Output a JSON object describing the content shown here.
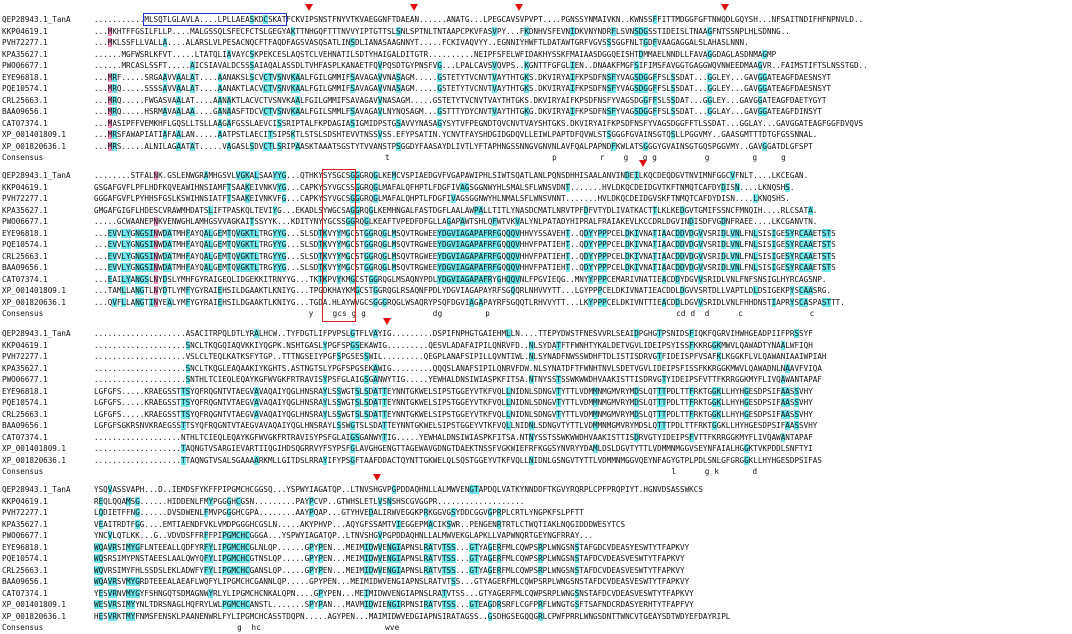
{
  "sequence_names": [
    "QEP28943.1_TanA",
    "KKP04619.1",
    "PVH72277.1",
    "KPA35627.1",
    "PWO06677.1",
    "EYE96818.1",
    "PQE10574.1",
    "CRL25663.1",
    "BAA09656.1",
    "CAT07374.1",
    "XP_001401809.1",
    "XP_001820636.1"
  ],
  "consensus_label": "Consensus",
  "blocks": [
    {
      "numbers": [
        "135",
        "145",
        "137",
        "136",
        "134",
        "141",
        "141",
        "141",
        "141",
        "142",
        "140",
        "149"
      ],
      "sequences": [
        "...........MLSQTLGLAVLA....LPLLAEASKDCSKATFCKVIPSNSTFNYVTKVAEGGNFTDAEAN......ANATG...LPEGCAVSVPVPT....PGNSSYNMAIVKN..KWNSSFFITTMDGGFGFTNWQDLGQYSH...NFSAITNDIFHFNPNVLD..",
        "...MKHTFFGSILFLLP....MALGSSQLSFECFCTSLGEGYAKTTNHGQFTTTNVVYIPTGTTSLSNLSPTNLTNTAAPCPKVFASVPY...FKDNHVSFEVNIDKVNYNDRFLSVNSDGSSTIDEISLTNAAGFNTSSNPLHLSDNNG..",
        "...MKLSSFLLVALLA....ALARSLVLPESACNQCFTFAQDFAGSVASQSATLINSDLIANASAAGNNYT.....FCKIVAQVYY..EGNNIYHWFTLDATAWTGRFVGVSSSGGFNLTGDFVAAGAGGALSLAHASLNNN.",
        "......MGFWSRLKFVT.....LTATQLIAVAYCSKPEKCESLAQSTCLVEHNATILSDTYHAIGALDITGTR..........NEIPFSFELWFIDAKHYSSKFMAIAASDGGQEISHTDMMAELNNDLLFAVAGGDAGLASDNMAGMP",
        "......MRCASLSSFT.....AICSIAVALDCSSSAIAQALASSDLTVHFASPLKANAETFQVPQSDTGYPNSFVG...LPALCAVSVQVPS..KGNTTFGFGLIEN..DNAAKFMGFSIFIMSFAVGGTGAGGWQVNWEEDMAAGVR..FAIMSTIFTSLNSSTGD..",
        "...MRF.....SRGAAVVAALAT....AANAKSLSCVCTVSNVKAALFGILGMMIFSAVAGAVVNASAGM.....GSTETYTVCNVTVAYTHTGKS.DKVIRYAIFKPSDFNSFYVAGSDGGFFSLSSDAT...GGLEY...GAVGGATEAGFDAESNSYT",
        "...MRQ.....SSSSAVVAALAT....AANAKTLACVCTVSNVKAALFGILGMMIFSAVAGAVVNASAGM.....GSTETYTVCNVTVAYTHTGKS.DKVIRYAIFKPSDFNSFYVAGSDGGFFSLSSDAT...GGLEY...GAVGGATEAGFDAESNSYT",
        "...MRQ.....FWGASVAALAT....AANAKTLACVCTVSNVKAALFGILGMMIFSAVAGAVVNASAGM.....GSTETYTVCNVTVAYTHTGKS.DKVIRYAIFKPSDFNSFYVAGSDGGFFSLSSDAT...GGLEY...GAVGGATEAGFDAETYGYT",
        "...MRQ.....HSRMAVAALAA....GANAASFTDCVCTVSNVKAALFGILSMMLFSAVAGAVLNYNQSAGM...GSTTTYDYCNVTVAYTHTGKG.DKVIRYAIFKPSDFNSFYVAGSDGGFFSLSSDAT...GGLAY...GAVGGATEAGFDINSYT",
        "...MASIPFFVEMKHFLGQSLLTSLLAAGAFGSSLAEVCISSRIPTALFKPDAGIASIGMIDPSTGSAVVYNASAGYSYTVFPEGNDTQVCNVTVAYSHTGKS.DKVIRYAIFKPSDFNSFYVAGSDGGFFTLSSDAT...GGLAY...GAVGGATEAGFGGFDVQVS",
        "...MRSFAWAPIATIAFAALAN.....AATPSTLAECITSIPSKTLSTSLSDSHTEVVTNSSVSS.EFYPSATIN.YCNVTFAYSHDGIDGDQVLLEIWLPAPTDFQVWLSTSGGGFGVAINSGTQSLLPGGVMY..GAASGMTTTDTGFGSSNNAL.",
        "...MRS.....ALNILAGAATAT.....VAGASLSDVCTLSRIPAASKTAAATSGSTYTVVANSTPSGGDYFAASAYDLIVTLYFTAPHNGSSNNGVGNVNLAVFQALPAPNDFKWLATSGGGYGVAINSGTGQSPGGVMY..GAVGGATDLGFSPT",
        "                                                             t                                  p         r    g   g g          g         g     g"
      ],
      "markers": [
        "col_46",
        "col_69",
        "col_92",
        "col_137"
      ]
    },
    {
      "numbers": [
        "280",
        "258",
        "288",
        "281",
        "283",
        "299",
        "299",
        "299",
        "299",
        "317",
        "310",
        "306"
      ],
      "sequences": [
        "........STFALNK.GSLENWGRAMHGSVLVGKALSAAYYG...QTHKYSYSGCSGGGRQGLKEMCVSPIAEDGVFVGAPAWIPHLSIWTSQATLANLPQNSDHHISAALANVINDEILKQCDEQDGVTNVIMNFGGCVFNLT....LKCEGAN.",
        "GSGAFGVFLPFLHDFKQVEAWIHNSIAMFTSAAKEIVNKVYG...CAPKYSYVGCSSGGRQGLMAFALQFHPTLFDGFIVAGSGGNWYHLSMALSFLWNSVDNT.......HVLDKQCDEIDGVTKFTNMQTCAFDYDISN....LKNQSHS.",
        "GGGAFGVFLPYHHSFGSLKSWIHNSIATFTSAAKEIVNKVFG...CAPKYSYVGCSGGGRQGLMAFALQHPTLFDGFIVAGSGGNWYHLNMALSFLWNSVNNT.......HVLDKQCDEIDGVSKFTNMQTCAFDYDISN....LKNQSHS.",
        "GMGAFGIGFLHDESCVRAWMHDATSLIFTPASKQLTEVIYG...EKADLSYWGCSAGGRQGLKEMHNGALFASTDGFLAALAWPALLTITLYNASDCMATLNRVTPFDFVTYDLIVATKACTTLKLKEDGVTGMIFSSNCFMNQIH....RLCSATA.",
        ".....GCWAANEPNKVENWGHLAMHGSVVAGKAITSSYYK...KDITYNYYGCSSGGRQGLKEAFTVPEDFDFGLLAGAPAWTSHLQFWTVKVALYNLPATADYHIPRALFRAIAKEVLKCCDRLDGVINDISDFVGDNFRAEE....LKCGANVTN.",
        "...EVVLYGNGSINWDATMHFAYQALGEMTQVGKTLTRGYYG...SLSDTKVYYMGCSTGGRQGLMSQVTRGWEEYDGVIAGAPAFRFGQQQVHHVYSSAVEHT..QDYYPPPCELDKIVNATIAACDDVDGVVSRIDLVNLFNLSISIGESYRCAAETSTS",
        "...EVVLYGNGSINWDATMHFAYQALGEMTQVGKTLTRGYYG...SLSDTKVYYMGCSTGGRQGLMSQVTRGWEEYDGVIAGAPAFRFGQQQVHHVFPATIEHT..QDYYPPPCELDKIVNATIAACDDVDGVVSRIDLVNLFNLSISIGESYRCAAETSTS",
        "...EVVLYGNGSINWDATMHFAYQALGEMTQVGKTLTRGYYG...SLSDTKVYYMGCSTGGRQGLMSQVTRGWEEYDGVIAGAPAFRFGQQQVHHVFPATIEHT..QDYYPPPCELDKIVNATIAACDDVDGVVSRIDLVNLFNLSISIGESYRCAAETSTS",
        "...EVVLYGNGSINWDATMHFAYQALGEMTQVGKTLTRGYYG...SLSDTKVYYMGCSTGGRQGLMSQVTRGWEEYDGVIAGAPAFRFGQQQVHHVFPATIEHT..QDYYPPPCELDKIVNATIAACDDVDGVVSRIDLVNLFNLSISIGESYRCAAETSTS",
        "...EAILYANGSLNYDSLYMHFGYRAIGEQLIDGEKKITRNYYG...TKTKPVYKMGCSTGGRQGLMSAQNYPDLYDGVIAGAPAFRYGHQQVNLFPGVIEQG..MNYYPPPCEMARIVNATIEACDDYDGVVSRIDLVNLFNFSNSIGLHYRCAGSNP.",
        "...TAMLLANGTLNYDTLYMFYGYRAIEHSILDGAAKTLKNIYG...TPGDKHAYKMGCSTGGRQGLRSAQNFPDLYDGVIAGAPAYRFSGQQRLNHVVYTT...LGYPPPCELDKIVNATIEACDDLDGVVSRTDLLVAPTLDLDSIGEKPYSCAASRG.",
        "...QVFLLANGTINYEALYMFYGYRAIEHSILDGAAKTLKNIYG...TGDA.HLAYWVGCSGGGRQGLWSAQRYPSQFDGVIAGAPAYRFSGQQTLRHVVYTT...LKYPPPCELDKIVNTTIEACDDLDGVVSRIDLVNLFHHDNSTIAPRYSCASPASTTT.",
        "                                             y    gcs g g              dg         p                                       cd d  d      c              c"
      ],
      "markers": [
        "col_119"
      ]
    },
    {
      "numbers": [
        "404",
        "371",
        "413",
        "407",
        "405",
        "456",
        "458",
        "458",
        "458",
        "463",
        "457",
        "449"
      ],
      "sequences": [
        "....................ASACITRPQLDTLYRALHCW..TYFDGTLIFPVPSLGTFLVAYIG.........DSPIFNPHGTGAIEHMLLN....TTEPYDWSTFNESVVRLSEAIDPGHGTPSNIDSFIQKFQGRVIHWHGEADPIIFPRSSYF",
        "....................SNCLTKQGQIAQVKKIYQGPK.NSHTGASLYPGFSPGSEKAWIG.........QESVLADAFAIPILQNRVFD..NLSYDATFTFWNHTYKALDETVGVLIDEIPSYISSFKKRGGKMWVLQAWADTYNAALWFIQH",
        "....................VSLCLTEQLKATKSFYTGP..TTTNGSEIYPGFSPGSESSWIL.........QEGPLANAFSIPILLQVNTIWL.NLSYNADFNWSSWDHFTDLISTISDRVGTFIDEISPFVSAFKLKGGKFLVLQAWANIAAIWPIAH",
        "....................SNCLTKQGLEAQAAKIYKGHTS.ASTNGTSLYPGFSPGSEKAWIG.........QQQSLANAFSIPILQNRVFDW.NLSYNATDFTFWNHTNVLSDETVGVLIDEIPSFISSFKKRGGKMWVLQAWADNLNAAVFVIQA",
        "....................SNTHLTCIEQLEQAYKGFWVGKFRTRAVISYPSFGLAIGSGANWYTIG.....YEWHALDNSIWIASPKFITSA.NTNYSSTSSWKWWDHVAAKISTTISDRVGTYIDEIPSFVTTFKRRGGKMYFLIVQAWANTAPAF",
        "LGFGFS.....KRAEGSSTTSYQFRQGNTVTAEGVAVAQAIYQGLHNSRAYLSSWGTSLSDATTEYNNTGKWELSIPSTGGEYVTKFVQLLNIDNLSDNGVTYTTLVDMMNMGMVRYMDSLQTTTPDLTTFRKTGGKLLHYHGESDPSIFAASSVHY",
        "LGFGFS.....KRAEGSSTTSYQFRQGNTVTAEGVAVAQAIYQGLHNSRAYLSSWGTSLSDATTEYNNTGKWELSIPSTGGEYVTKFVQLLNIDNLSDNGVTYTTLVDMMNMGMVRYMDSLQTTTPDLTTFRKTGGKLLHYHGESDPSIFAASSVHY",
        "LGFGFS.....KRAEGSSTTSYQFRQGNTVTAEGVAVAQAIYQGLHNSRAYLSSWGTSLSDATTEYNNTGKWELSIPSTGGEYVTKFVQLLNIDNLSDNGVTYTTLVDMMNMGMVRYMDSLQTTTPDLTTFRKTGGKLLHYHGESDPSIFAASSVHY",
        "LGFGFSGKRSNVKRAEGSSTTSYQFRQGNTVTAEGVAVAQAIYQGLHNSRAYLSSWGTSLSDATTEYNNTGKWELSIPSTGGEYVTKFVQLLNIDNLSDNGVTYTTLVDMMNMGMVRYMDSLQTTTPDLTTFRKTGGKLLHYHGESDPSIFAASSVHY",
        "...................NTHLTCIEQLEQAYKGFWVGKFRTRAVISYPSFGLAIGSGANWYTIG.....YEWHALDNSIWIASPKFITSA.NTNYSSTSSWKWWDHVAAKISTTISDRVGTYIDEIPSFVTTFKRRGGKMYFLIVQAWANTAPAF",
        "...................TAQNGTVSARGIEVARTIIQGIHDSQGRRVYFSYPSFGLAVGHGENGTTAGEWAVGDNGTDAEKTNSSFVGKWIEFRFKGGSYNVRYYDAMLDSLDGVTYTTLVDMMNMGGVSEYNFAIALHGGKTVKPDDLSNFTYI",
        "...................TTAQNGTVSALSGAAAARKMLLGITDSLRRAYIFYPSGFTAAFDDACTQYNTTGKWELQLSQSTGGEYVTKFVQLLNIDNLGSNGVTYTTLVDMMNMGGVQEYNFAGYGTPLPDLSNLGFGRGGKLLHYHGESDPSIFAS",
        "                                                                                                                         l      g k       d"
      ],
      "markers": [
        "col_63"
      ]
    },
    {
      "numbers": [
        "528",
        "466",
        "514",
        "513",
        "540",
        "578",
        "585",
        "580",
        "584",
        "587",
        "573",
        "572"
      ],
      "sequences": [
        "YSQVASSVAPH...D..IEMDSFYKFFPIPGMCHCGGSQ...YSPWYIAGATQP..LTNVSHGVPGPDDAQHNLLALMWVENGTAPDQLVATKYNNDDFTKGVYRQRPLCPFPRQPIYT.HGNVDSASSWKCS",
        "REQLQQAMSG......HIDDENLFMYPGGGHCGSN.........PAYPCVP..GTWHSLETLVSNSHSCGVGGPR...................",
        "LQDIETFFNG......DVSDWENLFMVPGGGHCGPA........AAYPQAP...GTYHVEDALIRWVEGGKPRKGGVGSYDDCGGVGPRPLCRTLYNGPKFSLPFTT",
        "VEAITRDTFGG....EMTIAENDFVKLVMDPGGGHCGSLN.....AKYPHVP...AQYGFSSAMTVIEGGEPMACIKSWR..PENGENRTRTLCTWQTIAKLNQGIDDDWESYTCS",
        "YNCVLQTLKK...G..VDVDSFFRFFPIPGMCHCGGGA...YSPWYIAGATQP..LTNVSHGVPGPDDAQHNLLALMWVEKGLAPKLLVAPWNQRTGEYNGFRRAY...",
        "WQAVRSIMYGFLNTEEALLQDFYRFYLIPGMCHCGLNLQP......GPYPEN...MEIMIDWVENGIAPNSLRATVTSS...GTYAGERFMLCQWPSRPLWNGSNSTAFGDCVDEASYESWTYTFAPKVY",
        "WQSRSIMYPNSTAEESLAALQWYQFYLIPGMCHCGTNSLQP.....GPYPEN...MEIMIDWVENGIAPNSLRATVTSS...GTYAGERFMLCQWPSRPLWNGSNSTAFDCVDEASVESWTYTFAPKVY",
        "WQVRSIMYFHLSSDSLEKLADWFYFYLIPGMCHCGANSLQP.....GPYPEN...MEIMIDWVENGIAPNSLRATVTSS...GTYAGERFMLCQWPSRPLWNGSNSTAFDCVDEASVESWTYTFAPKVY",
        "WQAVRSVMYGRDTEEEALAEAFLWQFYLIPGMCHCGANNLQP.....GPYPEN...MEIMIDWVENGIAPNSLRATVTSS...GTYAGERFMLCQWPSRPLWNGSNSTAFDCVDEASVESWTYTFAPKVY",
        "YESVRNVMYGYFSHNGQTSDMAGNWYRLYLIPGMCHCNKALQPN....GPYPEN...MEIMIDWVENGIAPNSLRATVTSS...GTYAGERFMLCQWPSRPLWNGSNSTAFDCVDEASVESWTYTFAPKVY",
        "WESVRSIMYYNLTDRSNAGLHQFRYLWLPGMCHCANSTL.......SPYPAN...MAVMIDWIENGIRPNSIRATVTSS...GTEAGDRSRFLCGFPRFLWNGTGSFTSAFNDCRDASYERHTYTFAPFVY",
        "HESVRKTMYFNMSFENSKLPAANENWRLFYLIPGMCHCASSTDQPN.....AGYPEN...MAIMIDWVEDGIAPNSIRATAGSS..GSDHGSEGQQGRLCPWFPRRLWNGSDNTTWNCVTGEAYSDTWDYEFDAYRIPL",
        "                              g  hc                          wve"
      ],
      "markers": [
        "col_61"
      ]
    }
  ]
}
